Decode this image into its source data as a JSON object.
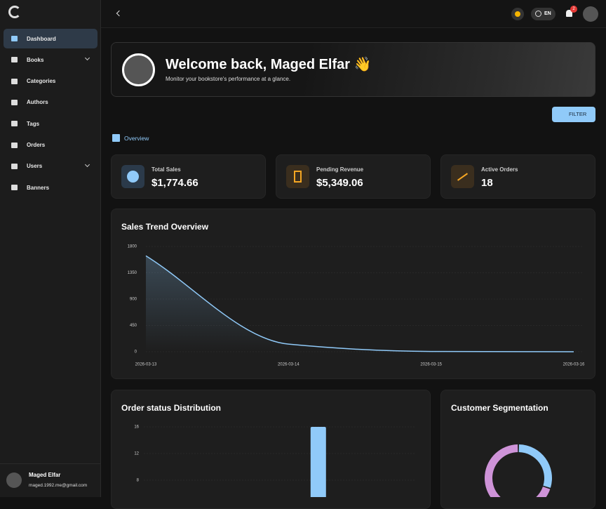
{
  "sidebar": {
    "menu": [
      {
        "label": "Dashboard"
      },
      {
        "label": "Books"
      },
      {
        "label": "Categories"
      },
      {
        "label": "Authors"
      },
      {
        "label": "Tags"
      },
      {
        "label": "Orders"
      },
      {
        "label": "Users"
      },
      {
        "label": "Banners"
      }
    ],
    "user": {
      "name": "Maged Elfar",
      "email": "maged.1992.me@gmail.com"
    }
  },
  "header": {
    "language": "EN",
    "notifications": "2"
  },
  "welcome": {
    "title": "Welcome back, Maged Elfar 👋",
    "subtitle": "Monitor your bookstore's performance at a glance."
  },
  "filter": "FILTER",
  "section": "Overview",
  "stats": [
    {
      "label": "Total Sales",
      "value": "$1,774.66"
    },
    {
      "label": "Pending Revenue",
      "value": "$5,349.06"
    },
    {
      "label": "Active Orders",
      "value": "18"
    }
  ],
  "chart_data": [
    {
      "type": "line",
      "title": "Sales Trend Overview",
      "x": [
        "2026-03-13",
        "2026-03-14",
        "2026-03-15",
        "2026-03-16"
      ],
      "values": [
        1640,
        130,
        5,
        0
      ],
      "color": "#90caf9",
      "ylim": [
        0,
        1800
      ],
      "yticks": [
        0,
        450,
        900,
        1350,
        1800
      ],
      "grid": true
    },
    {
      "type": "bar",
      "title": "Order status Distribution",
      "categories": [
        null,
        null,
        null,
        null,
        null,
        null,
        null
      ],
      "values": [
        0,
        0,
        0,
        0,
        16,
        0,
        0
      ],
      "color": "#90caf9",
      "ylim": [
        0,
        16
      ],
      "yticks": [
        8,
        12,
        16
      ],
      "grid": true
    },
    {
      "type": "pie",
      "title": "Customer Segmentation",
      "values": [
        30,
        70
      ],
      "colors": [
        "#90caf9",
        "#ce93d8"
      ]
    }
  ]
}
